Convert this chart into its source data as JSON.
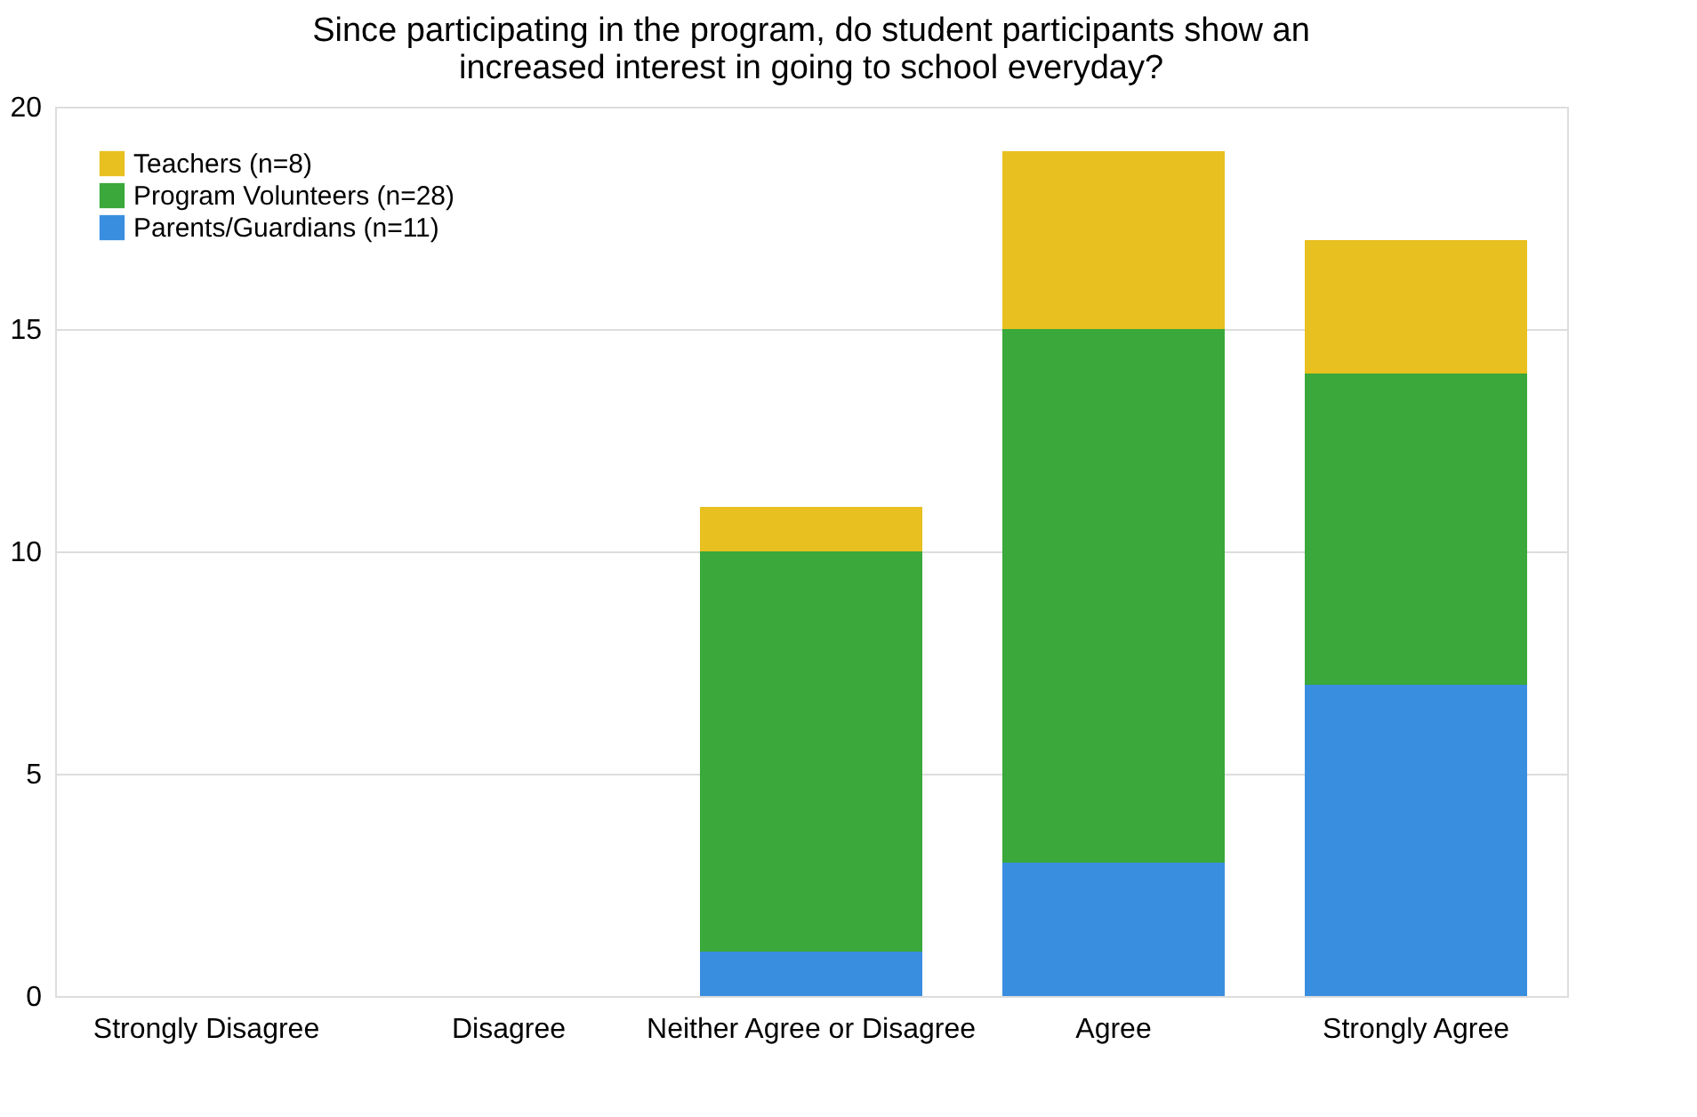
{
  "chart_data": {
    "type": "bar",
    "title": "Since participating in the program, do student participants show an increased interest in going to school everyday?",
    "categories": [
      "Strongly Disagree",
      "Disagree",
      "Neither Agree or Disagree",
      "Agree",
      "Strongly Agree"
    ],
    "stacked": true,
    "ylim": [
      0,
      20
    ],
    "yticks": [
      0,
      5,
      10,
      15,
      20
    ],
    "grid": "y",
    "legend": "top left",
    "series": [
      {
        "name": "Parents/Guardians (n=11)",
        "color": "#3a8ee0",
        "values": [
          0,
          0,
          1,
          3,
          7
        ]
      },
      {
        "name": "Program Volunteers (n=28)",
        "color": "#3aa83a",
        "values": [
          0,
          0,
          9,
          12,
          7
        ]
      },
      {
        "name": "Teachers (n=8)",
        "color": "#e8c020",
        "values": [
          0,
          0,
          1,
          4,
          3
        ]
      }
    ]
  }
}
